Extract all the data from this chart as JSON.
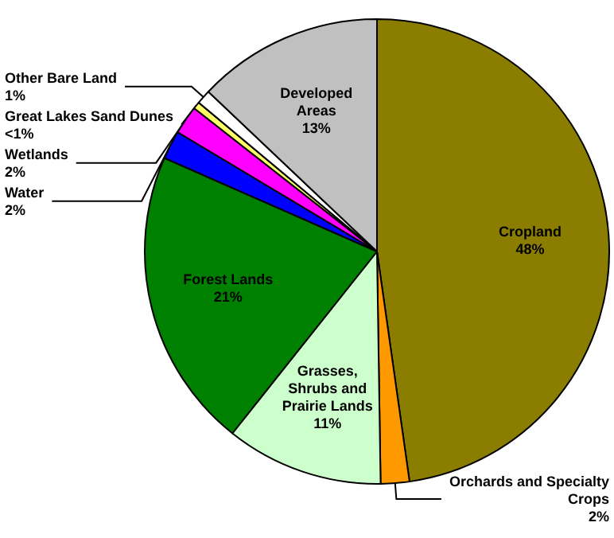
{
  "chart_data": {
    "type": "pie",
    "categories": [
      "Cropland",
      "Orchards and Specialty Crops",
      "Grasses, Shrubs and Prairie Lands",
      "Forest Lands",
      "Water",
      "Wetlands",
      "Great Lakes Sand Dunes",
      "Other Bare Land",
      "Developed Areas"
    ],
    "values": [
      48,
      2,
      11,
      21,
      2,
      2,
      0.5,
      1,
      13
    ],
    "value_labels": [
      "48%",
      "2%",
      "11%",
      "21%",
      "2%",
      "2%",
      "<1%",
      "1%",
      "13%"
    ],
    "colors": [
      "#8b7d00",
      "#ff9900",
      "#ccffcc",
      "#008000",
      "#0000ff",
      "#ff00ff",
      "#ffff66",
      "#ffffff",
      "#c0c0c0"
    ],
    "legend": false
  }
}
